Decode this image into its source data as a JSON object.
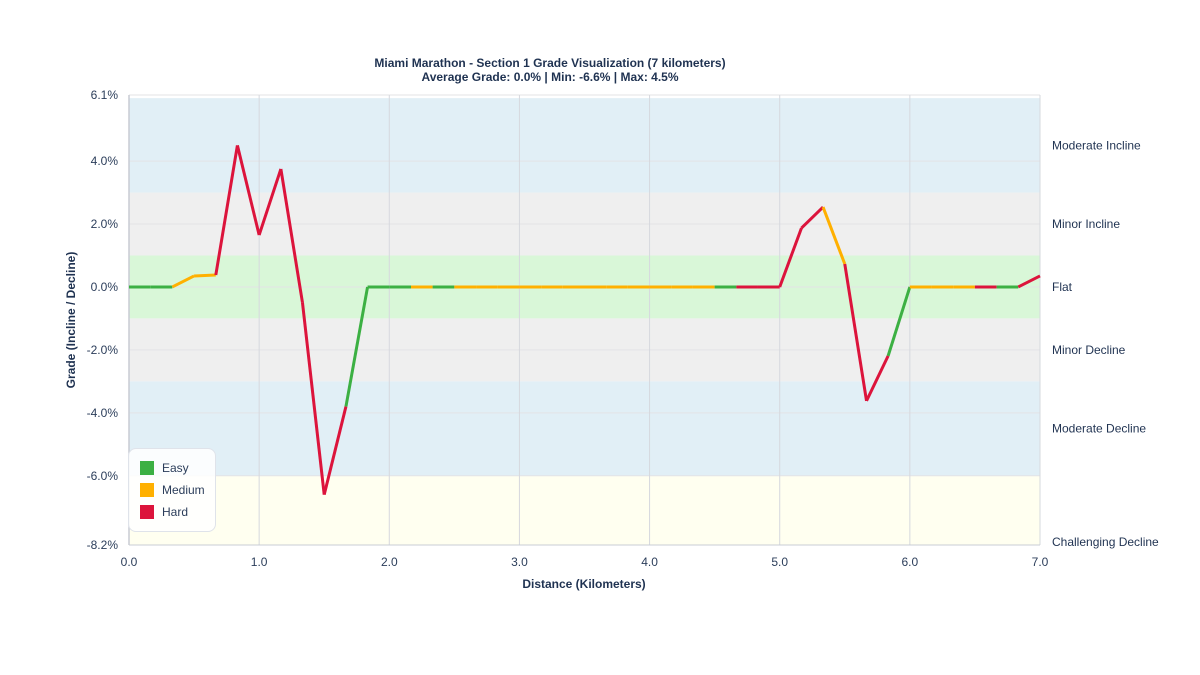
{
  "title": {
    "line1": "Miami Marathon - Section 1 Grade Visualization (7 kilometers)",
    "line2": "Average Grade: 0.0% | Min: -6.6% | Max: 4.5%"
  },
  "colors": {
    "easy": "#3cb043",
    "medium": "#ffb000",
    "hard": "#dc143c"
  },
  "legend": [
    {
      "label": "Easy",
      "color": "#3cb043"
    },
    {
      "label": "Medium",
      "color": "#ffb000"
    },
    {
      "label": "Hard",
      "color": "#dc143c"
    }
  ],
  "chart_data": {
    "type": "line",
    "title": "Miami Marathon - Section 1 Grade Visualization (7 kilometers)",
    "subtitle": "Average Grade: 0.0% | Min: -6.6% | Max: 4.5%",
    "xlabel": "Distance (Kilometers)",
    "ylabel": "Grade (Incline / Decline)",
    "xlim": [
      0,
      7
    ],
    "ylim": [
      -8.2,
      6.1
    ],
    "x_ticks": [
      "0.0",
      "1.0",
      "2.0",
      "3.0",
      "4.0",
      "5.0",
      "6.0",
      "7.0"
    ],
    "y_ticks": [
      {
        "value": 6.1,
        "label": "6.1%"
      },
      {
        "value": 4.0,
        "label": "4.0%"
      },
      {
        "value": 2.0,
        "label": "2.0%"
      },
      {
        "value": 0.0,
        "label": "0.0%"
      },
      {
        "value": -2.0,
        "label": "-2.0%"
      },
      {
        "value": -4.0,
        "label": "-4.0%"
      },
      {
        "value": -6.0,
        "label": "-6.0%"
      },
      {
        "value": -8.2,
        "label": "-8.2%"
      }
    ],
    "grid": true,
    "legend_position": "lower left",
    "zones": [
      {
        "label": "Moderate Incline",
        "from": 3,
        "to": 6,
        "color": "#e1eff6"
      },
      {
        "label": "Minor Incline",
        "from": 1,
        "to": 3,
        "color": "#efefef"
      },
      {
        "label": "Flat",
        "from": -1,
        "to": 1,
        "color": "#d9f7d8"
      },
      {
        "label": "Minor Decline",
        "from": -3,
        "to": -1,
        "color": "#efefef"
      },
      {
        "label": "Moderate Decline",
        "from": -6,
        "to": -3,
        "color": "#e1eff6"
      },
      {
        "label": "Challenging Decline",
        "from": -8.2,
        "to": -6,
        "color": "#fffff0"
      }
    ],
    "x": [
      0,
      0.167,
      0.333,
      0.5,
      0.667,
      0.833,
      1.0,
      1.167,
      1.333,
      1.5,
      1.667,
      1.833,
      2.0,
      2.167,
      2.333,
      2.5,
      2.667,
      2.833,
      3.0,
      3.167,
      3.333,
      3.5,
      3.667,
      3.833,
      4.0,
      4.167,
      4.333,
      4.5,
      4.667,
      4.833,
      5.0,
      5.167,
      5.333,
      5.5,
      5.667,
      5.833,
      6.0,
      6.167,
      6.333,
      6.5,
      6.667,
      6.833,
      7.0
    ],
    "y": [
      0,
      0,
      0,
      0.35,
      0.38,
      4.5,
      1.65,
      3.75,
      -0.5,
      -6.6,
      -3.8,
      0,
      0,
      0,
      0,
      0,
      0,
      0,
      0,
      0,
      0,
      0,
      0,
      0,
      0,
      0,
      0,
      0,
      0,
      0,
      0,
      1.87,
      2.54,
      0.73,
      -3.62,
      -2.19,
      0,
      0,
      0,
      0,
      0,
      0,
      0.35
    ],
    "segment_difficulty": [
      "easy",
      "easy",
      "medium",
      "medium",
      "hard",
      "hard",
      "hard",
      "hard",
      "hard",
      "hard",
      "easy",
      "easy",
      "easy",
      "medium",
      "easy",
      "medium",
      "medium",
      "medium",
      "medium",
      "medium",
      "medium",
      "medium",
      "medium",
      "medium",
      "medium",
      "medium",
      "medium",
      "easy",
      "hard",
      "hard",
      "hard",
      "hard",
      "medium",
      "hard",
      "hard",
      "easy",
      "medium",
      "medium",
      "medium",
      "hard",
      "easy",
      "hard"
    ]
  }
}
